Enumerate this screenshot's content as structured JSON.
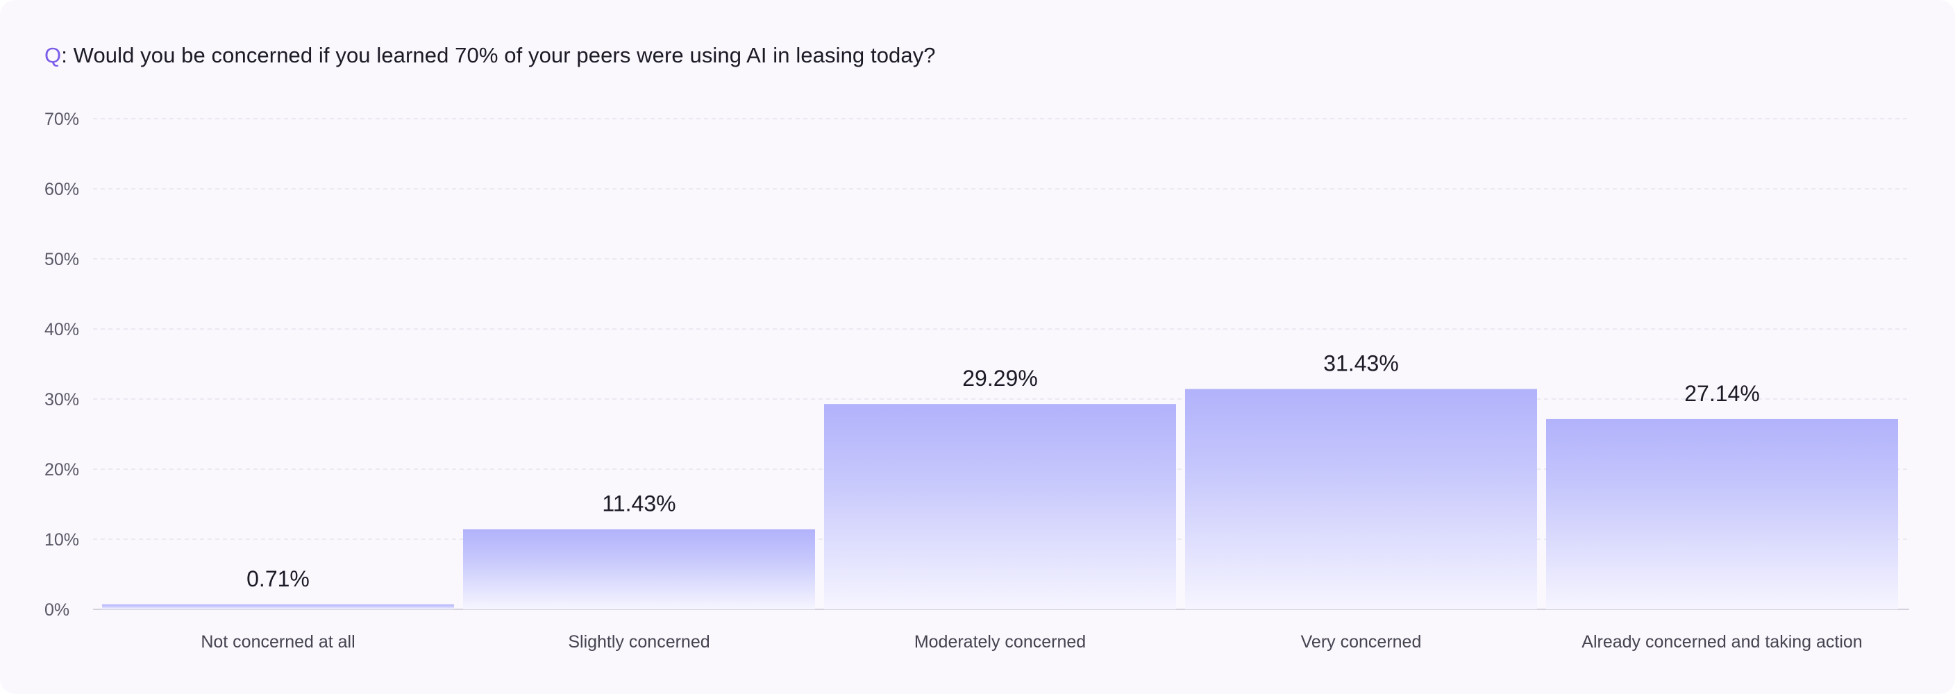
{
  "question": {
    "prefix": "Q",
    "text": ": Would you be concerned if you learned 70% of your peers were using AI in leasing today?"
  },
  "colors": {
    "bar_top": "#b1b2fb",
    "bar_bottom": "#f6f5ff",
    "accent": "#7a5ce8",
    "grid": "#e6e4ee",
    "baseline": "#d4d2dc"
  },
  "chart_data": {
    "type": "bar",
    "categories": [
      "Not concerned at all",
      "Slightly concerned",
      "Moderately concerned",
      "Very concerned",
      "Already concerned and taking action"
    ],
    "values": [
      0.71,
      11.43,
      29.29,
      31.43,
      27.14
    ],
    "value_labels": [
      "0.71%",
      "11.43%",
      "29.29%",
      "31.43%",
      "27.14%"
    ],
    "y_ticks": [
      "0%",
      "10%",
      "20%",
      "30%",
      "40%",
      "50%",
      "60%",
      "70%"
    ],
    "ylim": [
      0,
      70
    ],
    "grid": true,
    "legend": "none"
  }
}
